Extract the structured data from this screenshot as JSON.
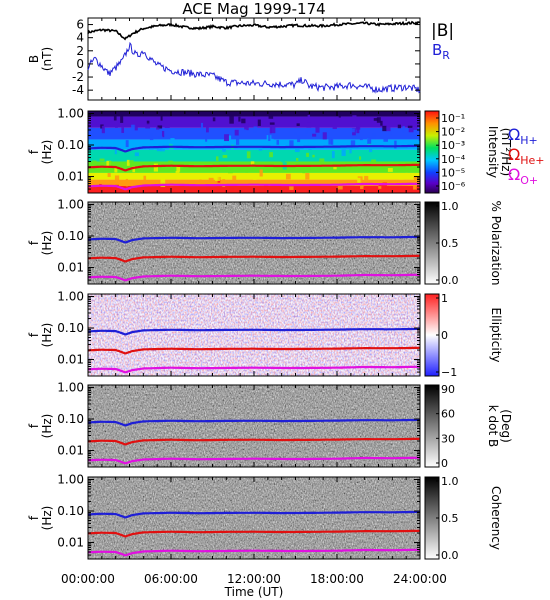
{
  "chart_data": {
    "title": "ACE Mag 1999-174",
    "x_tick_labels": [
      "00:00:00",
      "06:00:00",
      "12:00:00",
      "18:00:00",
      "24:00:00"
    ],
    "xlabel": "Time (UT)",
    "x_range_hours": [
      0,
      24
    ],
    "panels": [
      {
        "type": "line",
        "ylabel": "B",
        "yunit": "(nT)",
        "ylim": [
          -5.5,
          7
        ],
        "y_tick_labels": [
          "6",
          "4",
          "2",
          "0",
          "-2",
          "-4"
        ],
        "legend": [
          {
            "label": "|B|",
            "color": "#000000"
          },
          {
            "label": "B",
            "sub": "R",
            "color": "#1f1fd6"
          }
        ],
        "series": [
          {
            "name": "|B|",
            "color": "#000000",
            "x": [
              0,
              1,
              2,
              2.7,
              3.2,
              4,
              5,
              6,
              7,
              8,
              9,
              10,
              11,
              12,
              13,
              14,
              15,
              16,
              17,
              18,
              19,
              20,
              21,
              22,
              23,
              24
            ],
            "values": [
              4.8,
              5.2,
              5.0,
              3.8,
              4.6,
              5.4,
              5.8,
              6.0,
              5.6,
              5.4,
              5.7,
              5.5,
              5.8,
              5.9,
              5.6,
              5.7,
              5.9,
              5.8,
              5.8,
              6.0,
              6.1,
              6.2,
              6.0,
              6.1,
              6.2,
              6.3
            ]
          },
          {
            "name": "B_R",
            "color": "#1f1fd6",
            "x": [
              0,
              0.5,
              1,
              1.5,
              2,
              2.5,
              3,
              3.5,
              4,
              4.5,
              5,
              6,
              7,
              8,
              9,
              10,
              11,
              12,
              13,
              14,
              15,
              15.5,
              16,
              17,
              18,
              19,
              20,
              21,
              22,
              23,
              24
            ],
            "values": [
              -0.5,
              0.8,
              -0.3,
              -1.5,
              -0.6,
              0.5,
              2.8,
              1.2,
              2.0,
              0.8,
              -0.2,
              -1.0,
              -1.3,
              -1.6,
              -1.8,
              -2.8,
              -2.9,
              -3.0,
              -3.0,
              -3.1,
              -3.2,
              -2.4,
              -3.4,
              -3.6,
              -3.5,
              -3.2,
              -3.5,
              -3.9,
              -3.7,
              -3.5,
              -4.0
            ]
          }
        ]
      },
      {
        "type": "heatmap",
        "ylabel": "f",
        "yunit": "(Hz)",
        "colorbar_label": "Intensity",
        "colorbar_unit": "(nT²/Hz)",
        "colorbar_ticks": [
          "10⁻¹",
          "10⁻²",
          "10⁻³",
          "10⁻⁴",
          "10⁻⁵",
          "10⁻⁶"
        ],
        "colorbar_scale": "rainbow"
      },
      {
        "type": "heatmap",
        "ylabel": "f",
        "yunit": "(Hz)",
        "colorbar_label": "% Polarization",
        "colorbar_ticks": [
          "1.0",
          "0.5",
          "0.0"
        ],
        "colorbar_scale": "gray"
      },
      {
        "type": "heatmap",
        "ylabel": "f",
        "yunit": "(Hz)",
        "colorbar_label": "Ellipticity",
        "colorbar_ticks": [
          "1",
          "0",
          "−1"
        ],
        "colorbar_scale": "blue-white-red"
      },
      {
        "type": "heatmap",
        "ylabel": "f",
        "yunit": "(Hz)",
        "colorbar_label": "k dot B",
        "colorbar_unit": "(Deg)",
        "colorbar_ticks": [
          "90",
          "60",
          "30",
          "0"
        ],
        "colorbar_scale": "gray"
      },
      {
        "type": "heatmap",
        "ylabel": "f",
        "yunit": "(Hz)",
        "colorbar_label": "Coherency",
        "colorbar_ticks": [
          "1.0",
          "0.5",
          "0.0"
        ],
        "colorbar_scale": "gray"
      }
    ],
    "freq_tick_labels": [
      "1.00",
      "0.10",
      "0.01"
    ],
    "freq_log_range": [
      0.003,
      1.2
    ],
    "gyro_legend": [
      {
        "symbol": "Ω",
        "sub": "H+",
        "color": "#1f1fd6"
      },
      {
        "symbol": "Ω",
        "sub": "He+",
        "color": "#e01010"
      },
      {
        "symbol": "Ω",
        "sub": "O+",
        "color": "#e010e0"
      }
    ],
    "gyro_lines": [
      {
        "name": "H+",
        "color": "#1f1fd6",
        "x": [
          0,
          1,
          2,
          2.7,
          3.2,
          4,
          6,
          8,
          10,
          12,
          14,
          16,
          18,
          20,
          22,
          24
        ],
        "values": [
          0.078,
          0.082,
          0.08,
          0.062,
          0.074,
          0.084,
          0.088,
          0.085,
          0.087,
          0.088,
          0.086,
          0.087,
          0.089,
          0.092,
          0.091,
          0.094
        ]
      },
      {
        "name": "He+",
        "color": "#e01010",
        "x": [
          0,
          1,
          2,
          2.7,
          3.2,
          4,
          6,
          8,
          10,
          12,
          14,
          16,
          18,
          20,
          22,
          24
        ],
        "values": [
          0.0195,
          0.0205,
          0.02,
          0.0155,
          0.0185,
          0.021,
          0.022,
          0.0212,
          0.0218,
          0.022,
          0.0215,
          0.0218,
          0.0222,
          0.023,
          0.0228,
          0.0235
        ]
      },
      {
        "name": "O+",
        "color": "#e010e0",
        "x": [
          0,
          1,
          2,
          2.7,
          3.2,
          4,
          6,
          8,
          10,
          12,
          14,
          16,
          18,
          20,
          22,
          24
        ],
        "values": [
          0.0049,
          0.0051,
          0.005,
          0.0039,
          0.0046,
          0.0052,
          0.0055,
          0.0053,
          0.0054,
          0.0055,
          0.0054,
          0.0054,
          0.0055,
          0.0058,
          0.0057,
          0.0059
        ]
      }
    ]
  }
}
